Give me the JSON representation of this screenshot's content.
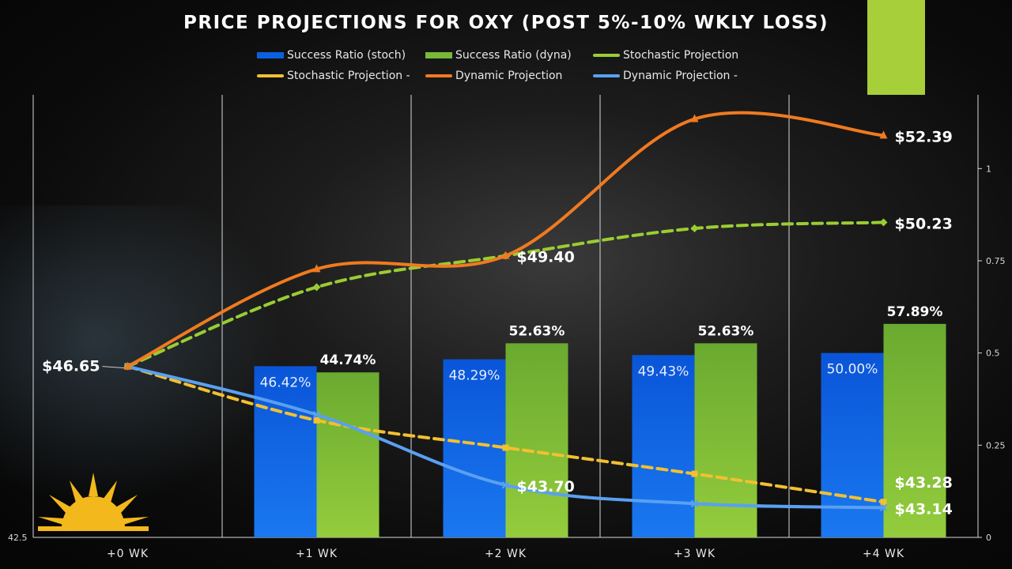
{
  "title": "PRICE PROJECTIONS FOR OXY (POST 5%-10% WKLY LOSS)",
  "chart_data": {
    "type": "bar+line",
    "title": "PRICE PROJECTIONS FOR OXY (POST 5%-10% WKLY LOSS)",
    "categories": [
      "+0 WK",
      "+1 WK",
      "+2 WK",
      "+3 WK",
      "+4 WK"
    ],
    "left_axis": {
      "min": 42.4,
      "max": 53.4,
      "tick_labels": [
        "42.5"
      ]
    },
    "right_axis": {
      "min": 0,
      "max": 1.2,
      "tick_labels": [
        "0",
        "0.25",
        "0.5",
        "0.75",
        "1"
      ],
      "ticks": [
        0,
        0.25,
        0.5,
        0.75,
        1
      ]
    },
    "bar_series": [
      {
        "name": "Success Ratio (stoch)",
        "color": "#0b5fe0",
        "values": [
          null,
          0.4642,
          0.4829,
          0.4943,
          0.5
        ],
        "labels": [
          "",
          "46.42%",
          "48.29%",
          "49.43%",
          "50.00%"
        ]
      },
      {
        "name": "Success Ratio (dyna)",
        "color": "#7ab838",
        "values": [
          null,
          0.4474,
          0.5263,
          0.5263,
          0.5789
        ],
        "labels": [
          "",
          "44.74%",
          "52.63%",
          "52.63%",
          "57.89%"
        ]
      }
    ],
    "line_series": [
      {
        "name": "Stochastic Projection",
        "color": "#9acd32",
        "dash": true,
        "marker": "diamond",
        "values": [
          46.65,
          48.62,
          49.4,
          50.08,
          50.23
        ],
        "labels": [
          "",
          "",
          "",
          "",
          "$50.23"
        ]
      },
      {
        "name": "Stochastic Projection -",
        "color": "#f2c030",
        "dash": true,
        "marker": "square",
        "values": [
          46.65,
          45.31,
          44.63,
          43.98,
          43.28
        ],
        "labels": [
          "",
          "",
          "",
          "",
          "$43.28"
        ]
      },
      {
        "name": "Dynamic Projection",
        "color": "#f07a20",
        "dash": false,
        "marker": "triangle",
        "values": [
          46.65,
          49.07,
          49.4,
          52.8,
          52.39
        ],
        "labels": [
          "$46.65",
          "",
          "$49.40",
          "",
          "$52.39"
        ]
      },
      {
        "name": "Dynamic Projection -",
        "color": "#5aa0f0",
        "dash": false,
        "marker": "x",
        "values": [
          46.65,
          45.45,
          43.7,
          43.24,
          43.14
        ],
        "labels": [
          "",
          "",
          "$43.70",
          "",
          "$43.14"
        ]
      }
    ],
    "legend_position": "top"
  }
}
